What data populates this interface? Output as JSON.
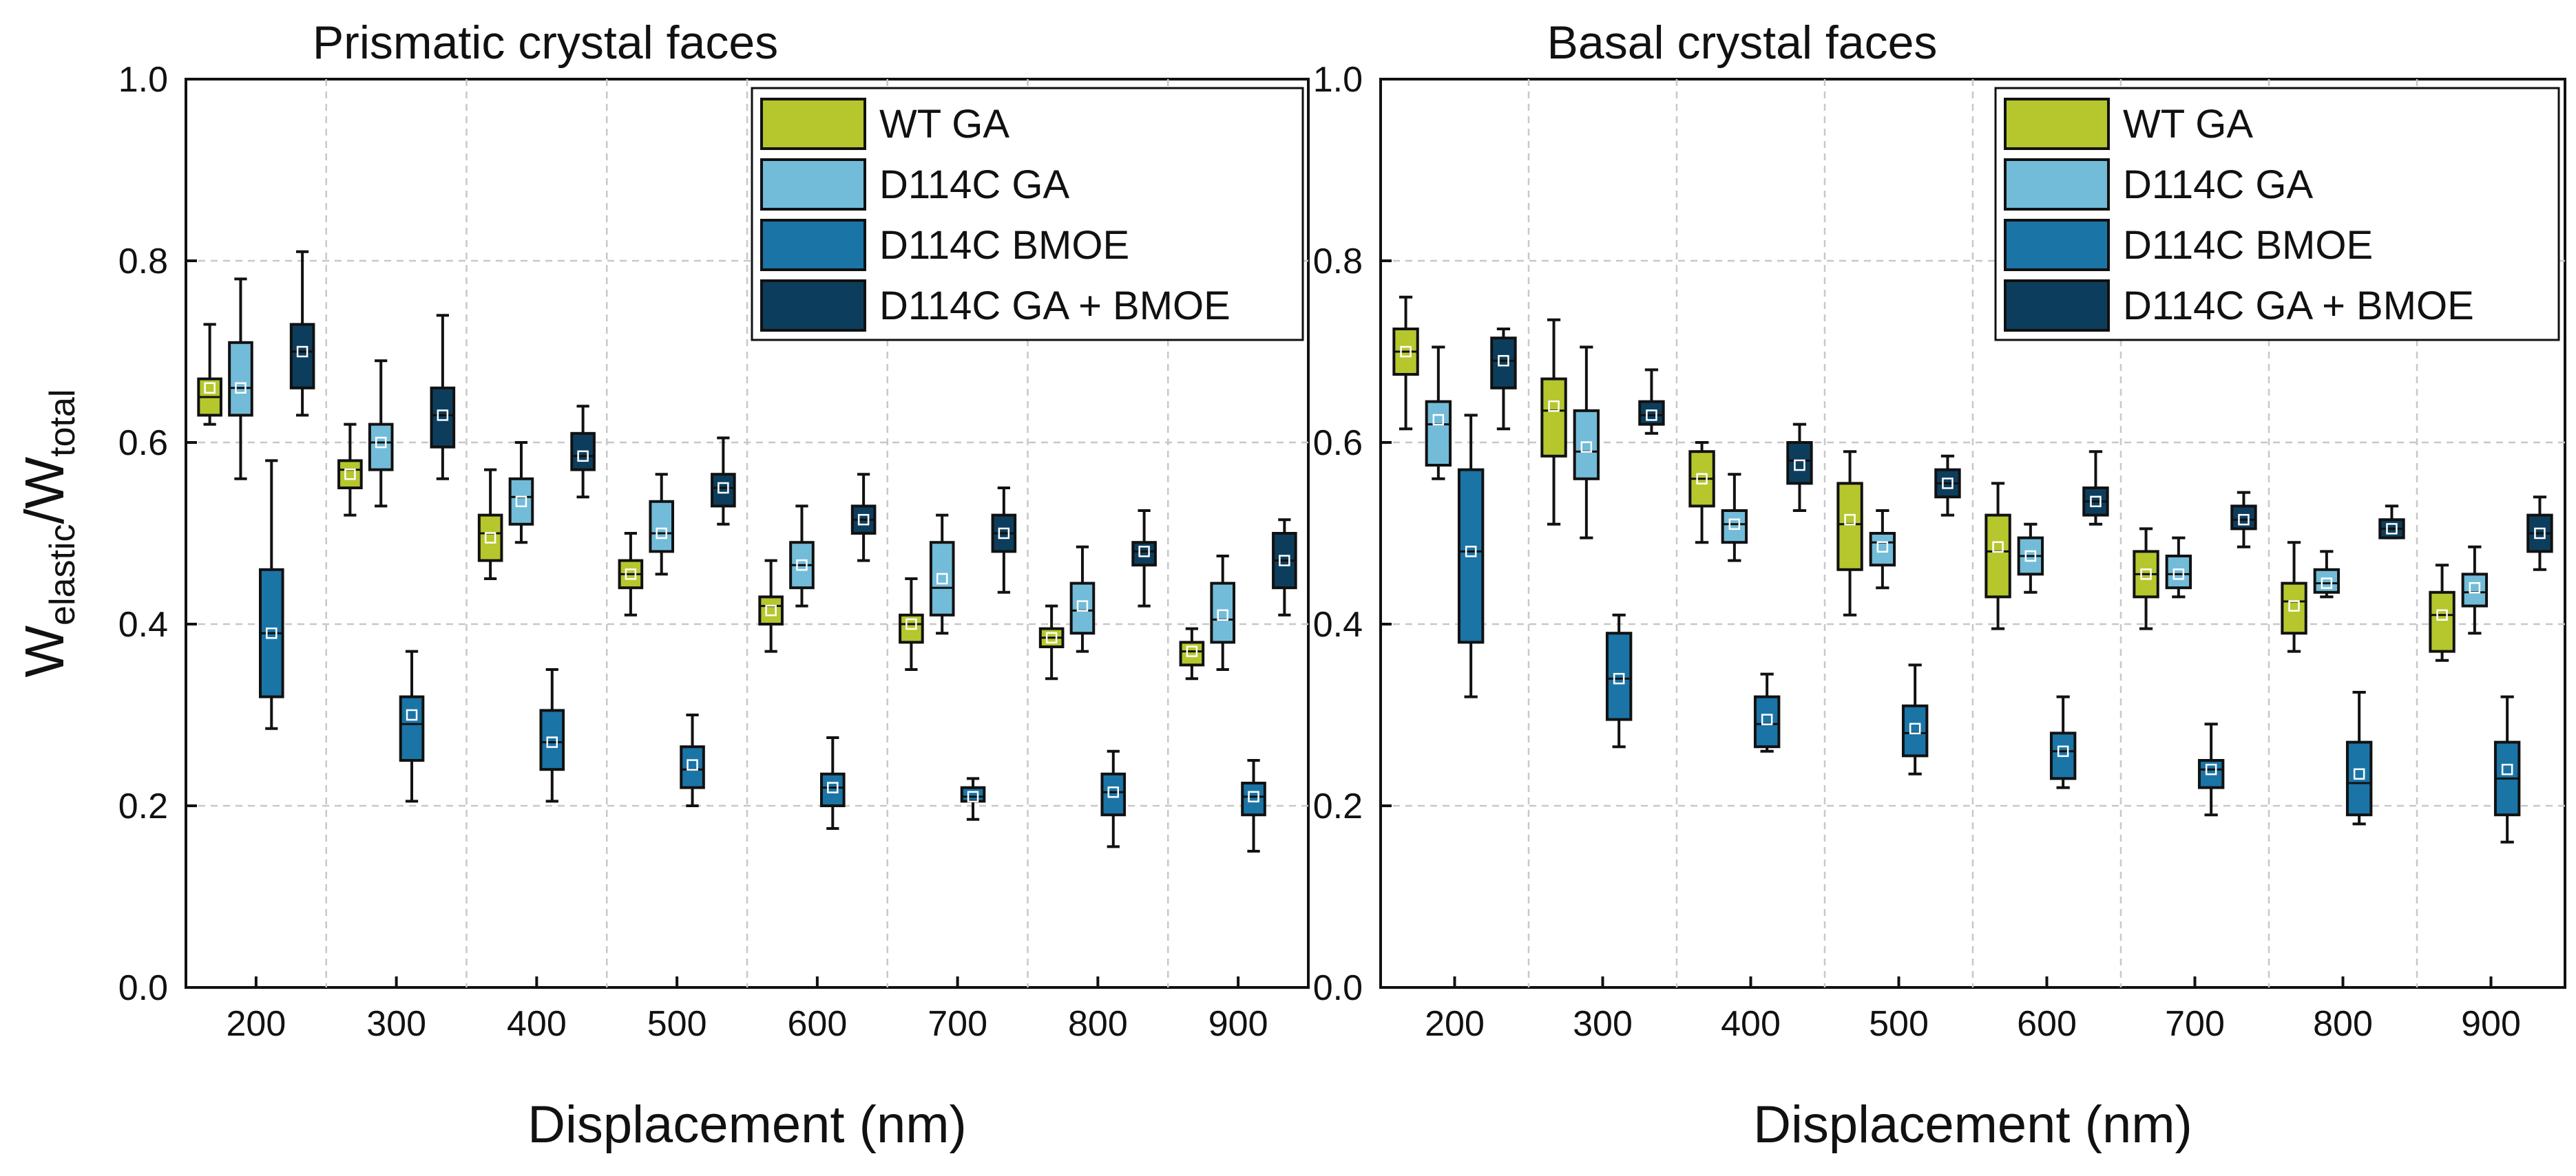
{
  "chart_data": [
    {
      "type": "box",
      "title": "Prismatic crystal faces",
      "xlabel": "Displacement (nm)",
      "ylabel": {
        "main": "W",
        "sub1": "elastic",
        "sep": "/W",
        "sub2": "total"
      },
      "ylim": [
        0.0,
        1.0
      ],
      "yticks": [
        "0.0",
        "0.2",
        "0.4",
        "0.6",
        "0.8",
        "1.0"
      ],
      "categories": [
        "200",
        "300",
        "400",
        "500",
        "600",
        "700",
        "800",
        "900"
      ],
      "legend_position": "top-right",
      "series": [
        {
          "name": "WT GA",
          "color": "#b5c72d",
          "boxes": [
            [
              0.62,
              0.63,
              0.65,
              0.67,
              0.73,
              0.66
            ],
            [
              0.52,
              0.55,
              0.57,
              0.58,
              0.62,
              0.565
            ],
            [
              0.45,
              0.47,
              0.5,
              0.52,
              0.57,
              0.495
            ],
            [
              0.41,
              0.44,
              0.455,
              0.47,
              0.5,
              0.455
            ],
            [
              0.37,
              0.4,
              0.42,
              0.43,
              0.47,
              0.415
            ],
            [
              0.35,
              0.38,
              0.4,
              0.41,
              0.45,
              0.4
            ],
            [
              0.34,
              0.375,
              0.385,
              0.395,
              0.42,
              0.385
            ],
            [
              0.34,
              0.355,
              0.37,
              0.38,
              0.395,
              0.37
            ]
          ]
        },
        {
          "name": "D114C GA",
          "color": "#72bcd9",
          "boxes": [
            [
              0.56,
              0.63,
              0.66,
              0.71,
              0.78,
              0.66
            ],
            [
              0.53,
              0.57,
              0.6,
              0.62,
              0.69,
              0.6
            ],
            [
              0.49,
              0.51,
              0.54,
              0.56,
              0.6,
              0.535
            ],
            [
              0.455,
              0.48,
              0.5,
              0.535,
              0.565,
              0.5
            ],
            [
              0.42,
              0.44,
              0.465,
              0.49,
              0.53,
              0.465
            ],
            [
              0.39,
              0.41,
              0.44,
              0.49,
              0.52,
              0.45
            ],
            [
              0.37,
              0.39,
              0.415,
              0.445,
              0.485,
              0.42
            ],
            [
              0.35,
              0.38,
              0.405,
              0.445,
              0.475,
              0.41
            ]
          ]
        },
        {
          "name": "D114C BMOE",
          "color": "#1b74a6",
          "boxes": [
            [
              0.285,
              0.32,
              0.39,
              0.46,
              0.58,
              0.39
            ],
            [
              0.205,
              0.25,
              0.29,
              0.32,
              0.37,
              0.3
            ],
            [
              0.205,
              0.24,
              0.27,
              0.305,
              0.35,
              0.27
            ],
            [
              0.2,
              0.22,
              0.24,
              0.265,
              0.3,
              0.245
            ],
            [
              0.175,
              0.2,
              0.22,
              0.235,
              0.275,
              0.22
            ],
            [
              0.185,
              0.205,
              0.21,
              0.22,
              0.23,
              0.21
            ],
            [
              0.155,
              0.19,
              0.215,
              0.235,
              0.26,
              0.215
            ],
            [
              0.15,
              0.19,
              0.21,
              0.225,
              0.25,
              0.21
            ]
          ]
        },
        {
          "name": "D114C GA + BMOE",
          "color": "#0d3d5c",
          "boxes": [
            [
              0.63,
              0.66,
              0.7,
              0.73,
              0.81,
              0.7
            ],
            [
              0.56,
              0.595,
              0.63,
              0.66,
              0.74,
              0.63
            ],
            [
              0.54,
              0.57,
              0.585,
              0.61,
              0.64,
              0.585
            ],
            [
              0.51,
              0.53,
              0.55,
              0.565,
              0.605,
              0.55
            ],
            [
              0.47,
              0.5,
              0.515,
              0.53,
              0.565,
              0.515
            ],
            [
              0.435,
              0.48,
              0.5,
              0.52,
              0.55,
              0.5
            ],
            [
              0.42,
              0.465,
              0.48,
              0.49,
              0.525,
              0.48
            ],
            [
              0.41,
              0.44,
              0.47,
              0.5,
              0.515,
              0.47
            ]
          ]
        }
      ]
    },
    {
      "type": "box",
      "title": "Basal crystal faces",
      "xlabel": "Displacement (nm)",
      "ylim": [
        0.0,
        1.0
      ],
      "yticks": [
        "0.0",
        "0.2",
        "0.4",
        "0.6",
        "0.8",
        "1.0"
      ],
      "categories": [
        "200",
        "300",
        "400",
        "500",
        "600",
        "700",
        "800",
        "900"
      ],
      "legend_position": "top-right",
      "series": [
        {
          "name": "WT GA",
          "color": "#b5c72d",
          "boxes": [
            [
              0.615,
              0.675,
              0.7,
              0.725,
              0.76,
              0.7
            ],
            [
              0.51,
              0.585,
              0.635,
              0.67,
              0.735,
              0.64
            ],
            [
              0.49,
              0.53,
              0.56,
              0.59,
              0.6,
              0.56
            ],
            [
              0.41,
              0.46,
              0.51,
              0.555,
              0.59,
              0.515
            ],
            [
              0.395,
              0.43,
              0.48,
              0.52,
              0.555,
              0.485
            ],
            [
              0.395,
              0.43,
              0.455,
              0.48,
              0.505,
              0.455
            ],
            [
              0.37,
              0.39,
              0.425,
              0.445,
              0.49,
              0.42
            ],
            [
              0.36,
              0.37,
              0.41,
              0.435,
              0.465,
              0.41
            ]
          ]
        },
        {
          "name": "D114C GA",
          "color": "#72bcd9",
          "boxes": [
            [
              0.56,
              0.575,
              0.62,
              0.645,
              0.705,
              0.625
            ],
            [
              0.495,
              0.56,
              0.59,
              0.635,
              0.705,
              0.595
            ],
            [
              0.47,
              0.49,
              0.51,
              0.525,
              0.565,
              0.51
            ],
            [
              0.44,
              0.465,
              0.49,
              0.5,
              0.525,
              0.485
            ],
            [
              0.435,
              0.455,
              0.475,
              0.495,
              0.51,
              0.475
            ],
            [
              0.43,
              0.44,
              0.455,
              0.475,
              0.495,
              0.455
            ],
            [
              0.43,
              0.435,
              0.445,
              0.46,
              0.48,
              0.445
            ],
            [
              0.39,
              0.42,
              0.435,
              0.455,
              0.485,
              0.44
            ]
          ]
        },
        {
          "name": "D114C BMOE",
          "color": "#1b74a6",
          "boxes": [
            [
              0.32,
              0.38,
              0.48,
              0.57,
              0.63,
              0.48
            ],
            [
              0.265,
              0.295,
              0.34,
              0.39,
              0.41,
              0.34
            ],
            [
              0.26,
              0.265,
              0.29,
              0.32,
              0.345,
              0.295
            ],
            [
              0.235,
              0.255,
              0.28,
              0.31,
              0.355,
              0.285
            ],
            [
              0.22,
              0.23,
              0.26,
              0.28,
              0.32,
              0.26
            ],
            [
              0.19,
              0.22,
              0.24,
              0.25,
              0.29,
              0.24
            ],
            [
              0.18,
              0.19,
              0.225,
              0.27,
              0.325,
              0.235
            ],
            [
              0.16,
              0.19,
              0.23,
              0.27,
              0.32,
              0.24
            ]
          ]
        },
        {
          "name": "D114C GA + BMOE",
          "color": "#0d3d5c",
          "boxes": [
            [
              0.615,
              0.66,
              0.69,
              0.715,
              0.725,
              0.69
            ],
            [
              0.61,
              0.62,
              0.63,
              0.645,
              0.68,
              0.63
            ],
            [
              0.525,
              0.555,
              0.58,
              0.6,
              0.62,
              0.575
            ],
            [
              0.52,
              0.54,
              0.555,
              0.57,
              0.585,
              0.555
            ],
            [
              0.51,
              0.52,
              0.535,
              0.55,
              0.59,
              0.535
            ],
            [
              0.485,
              0.505,
              0.515,
              0.53,
              0.545,
              0.515
            ],
            [
              0.495,
              0.495,
              0.505,
              0.515,
              0.53,
              0.505
            ],
            [
              0.46,
              0.48,
              0.5,
              0.52,
              0.54,
              0.5
            ]
          ]
        }
      ]
    }
  ]
}
